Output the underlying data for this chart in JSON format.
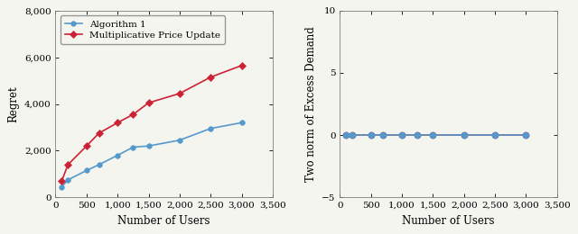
{
  "x_users": [
    100,
    200,
    500,
    700,
    1000,
    1250,
    1500,
    2000,
    2500,
    3000
  ],
  "alg1_regret": [
    450,
    750,
    1150,
    1400,
    1800,
    2150,
    2200,
    2450,
    2950,
    3200
  ],
  "mpu_regret": [
    700,
    1400,
    2200,
    2750,
    3200,
    3550,
    4050,
    4450,
    5150,
    5650
  ],
  "excess_demand_x": [
    100,
    200,
    500,
    700,
    1000,
    1250,
    1500,
    2000,
    2500,
    3000
  ],
  "excess_demand_alg1": [
    0,
    0,
    0,
    0,
    0,
    0,
    0,
    0,
    0,
    0
  ],
  "excess_demand_mpu": [
    0,
    0,
    0,
    0,
    0,
    0,
    0,
    0,
    0,
    0
  ],
  "alg1_color": "#5599cc",
  "mpu_color": "#cc2233",
  "left_ylabel": "Regret",
  "right_ylabel": "Two norm of Excess Demand",
  "xlabel": "Number of Users",
  "left_ylim": [
    0,
    8000
  ],
  "left_yticks": [
    0,
    2000,
    4000,
    6000,
    8000
  ],
  "right_ylim": [
    -5,
    10
  ],
  "right_yticks": [
    -5,
    0,
    5,
    10
  ],
  "xlim": [
    0,
    3500
  ],
  "xticks": [
    0,
    500,
    1000,
    1500,
    2000,
    2500,
    3000,
    3500
  ],
  "xtick_labels": [
    "0",
    "500",
    "1,000",
    "1,500",
    "2,000",
    "2,500",
    "3,000",
    "3,500"
  ],
  "legend_alg1": "Algorithm 1",
  "legend_mpu": "Multiplicative Price Update",
  "bg_color": "#f5f5f0"
}
